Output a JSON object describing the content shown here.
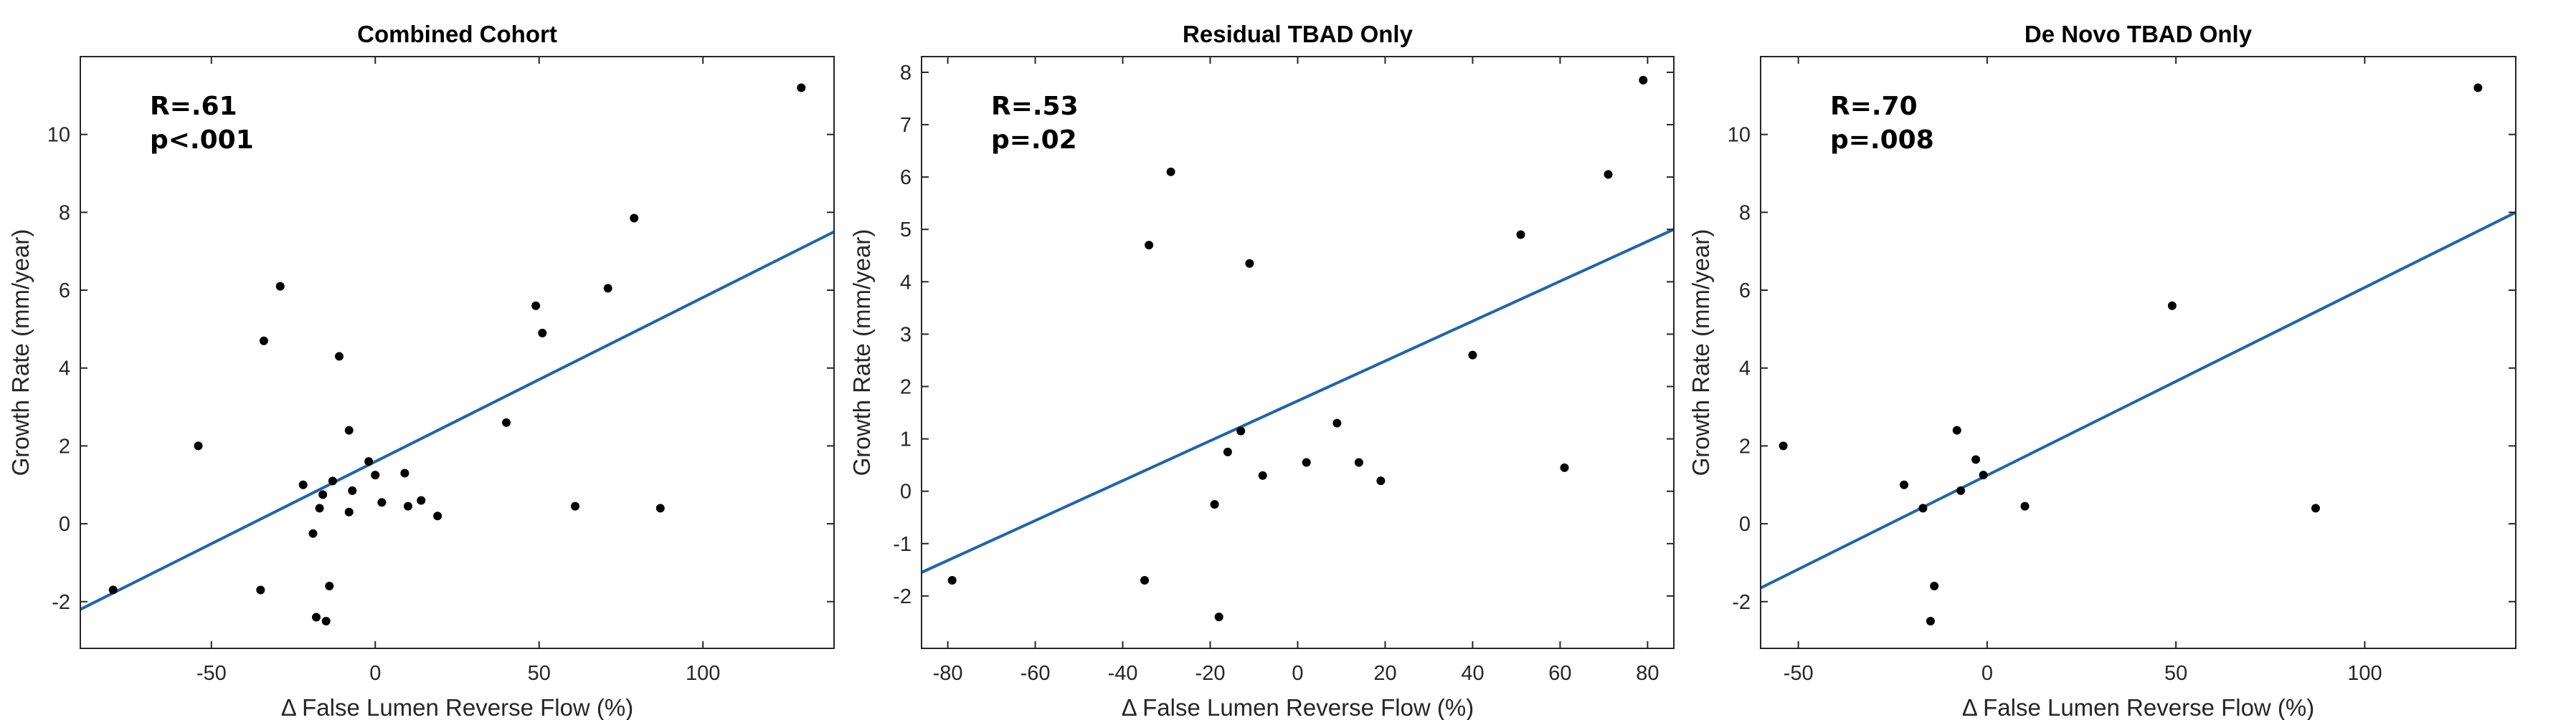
{
  "chart_data": [
    {
      "type": "scatter",
      "title": "Combined Cohort",
      "xlabel": "Δ False Lumen Reverse Flow (%)",
      "ylabel": "Growth Rate (mm/year)",
      "xlim": [
        -90,
        140
      ],
      "ylim": [
        -3.2,
        12
      ],
      "xticks": [
        -50,
        0,
        50,
        100
      ],
      "yticks": [
        -2,
        0,
        2,
        4,
        6,
        8,
        10
      ],
      "annotation": [
        "R=.61",
        "p<.001"
      ],
      "points": [
        {
          "x": -80,
          "y": -1.7
        },
        {
          "x": -54,
          "y": 2.0
        },
        {
          "x": -35,
          "y": -1.7
        },
        {
          "x": -34,
          "y": 4.7
        },
        {
          "x": -29,
          "y": 6.1
        },
        {
          "x": -22,
          "y": 1.0
        },
        {
          "x": -19,
          "y": -0.25
        },
        {
          "x": -18,
          "y": -2.4
        },
        {
          "x": -17,
          "y": 0.4
        },
        {
          "x": -16,
          "y": 0.75
        },
        {
          "x": -15,
          "y": -2.5
        },
        {
          "x": -14,
          "y": -1.6
        },
        {
          "x": -13,
          "y": 1.1
        },
        {
          "x": -11,
          "y": 4.3
        },
        {
          "x": -8,
          "y": 0.3
        },
        {
          "x": -8,
          "y": 2.4
        },
        {
          "x": -7,
          "y": 0.85
        },
        {
          "x": -2,
          "y": 1.6
        },
        {
          "x": 0,
          "y": 1.25
        },
        {
          "x": 2,
          "y": 0.55
        },
        {
          "x": 9,
          "y": 1.3
        },
        {
          "x": 10,
          "y": 0.45
        },
        {
          "x": 14,
          "y": 0.6
        },
        {
          "x": 19,
          "y": 0.2
        },
        {
          "x": 40,
          "y": 2.6
        },
        {
          "x": 49,
          "y": 5.6
        },
        {
          "x": 51,
          "y": 4.9
        },
        {
          "x": 61,
          "y": 0.45
        },
        {
          "x": 71,
          "y": 6.05
        },
        {
          "x": 79,
          "y": 7.85
        },
        {
          "x": 87,
          "y": 0.4
        },
        {
          "x": 130,
          "y": 11.2
        }
      ],
      "fit_line": {
        "x": [
          -90,
          140
        ],
        "y": [
          -2.2,
          7.5
        ]
      },
      "point_color": "#000000",
      "line_color": "#1f65ad"
    },
    {
      "type": "scatter",
      "title": "Residual TBAD Only",
      "xlabel": "Δ False Lumen Reverse Flow (%)",
      "ylabel": "Growth Rate (mm/year)",
      "xlim": [
        -86,
        86
      ],
      "ylim": [
        -3,
        8.3
      ],
      "xticks": [
        -80,
        -60,
        -40,
        -20,
        0,
        20,
        40,
        60,
        80
      ],
      "yticks": [
        -2,
        -1,
        0,
        1,
        2,
        3,
        4,
        5,
        6,
        7,
        8
      ],
      "annotation": [
        "R=.53",
        "p=.02"
      ],
      "points": [
        {
          "x": -79,
          "y": -1.7
        },
        {
          "x": -35,
          "y": -1.7
        },
        {
          "x": -34,
          "y": 4.7
        },
        {
          "x": -29,
          "y": 6.1
        },
        {
          "x": -19,
          "y": -0.25
        },
        {
          "x": -18,
          "y": -2.4
        },
        {
          "x": -16,
          "y": 0.75
        },
        {
          "x": -13,
          "y": 1.15
        },
        {
          "x": -11,
          "y": 4.35
        },
        {
          "x": -8,
          "y": 0.3
        },
        {
          "x": 2,
          "y": 0.55
        },
        {
          "x": 9,
          "y": 1.3
        },
        {
          "x": 14,
          "y": 0.55
        },
        {
          "x": 19,
          "y": 0.2
        },
        {
          "x": 40,
          "y": 2.6
        },
        {
          "x": 51,
          "y": 4.9
        },
        {
          "x": 61,
          "y": 0.45
        },
        {
          "x": 71,
          "y": 6.05
        },
        {
          "x": 79,
          "y": 7.85
        }
      ],
      "fit_line": {
        "x": [
          -86,
          86
        ],
        "y": [
          -1.55,
          5.0
        ]
      },
      "point_color": "#000000",
      "line_color": "#1f65ad"
    },
    {
      "type": "scatter",
      "title": "De Novo TBAD Only",
      "xlabel": "Δ False Lumen Reverse Flow (%)",
      "ylabel": "Growth Rate (mm/year)",
      "xlim": [
        -60,
        140
      ],
      "ylim": [
        -3.2,
        12
      ],
      "xticks": [
        -50,
        0,
        50,
        100
      ],
      "yticks": [
        -2,
        0,
        2,
        4,
        6,
        8,
        10
      ],
      "annotation": [
        "R=.70",
        "p=.008"
      ],
      "points": [
        {
          "x": -54,
          "y": 2.0
        },
        {
          "x": -22,
          "y": 1.0
        },
        {
          "x": -17,
          "y": 0.4
        },
        {
          "x": -15,
          "y": -2.5
        },
        {
          "x": -14,
          "y": -1.6
        },
        {
          "x": -8,
          "y": 2.4
        },
        {
          "x": -7,
          "y": 0.85
        },
        {
          "x": -3,
          "y": 1.65
        },
        {
          "x": -1,
          "y": 1.25
        },
        {
          "x": 10,
          "y": 0.45
        },
        {
          "x": 49,
          "y": 5.6
        },
        {
          "x": 87,
          "y": 0.4
        },
        {
          "x": 130,
          "y": 11.2
        }
      ],
      "fit_line": {
        "x": [
          -60,
          140
        ],
        "y": [
          -1.65,
          8.0
        ]
      },
      "point_color": "#000000",
      "line_color": "#1f65ad"
    }
  ]
}
